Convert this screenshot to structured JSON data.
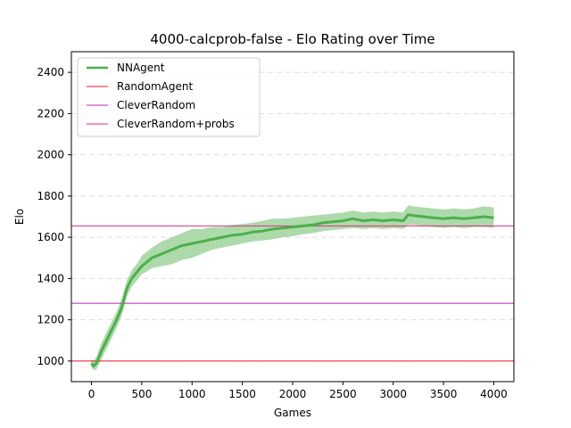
{
  "chart_data": {
    "type": "line",
    "title": "4000-calcprob-false - Elo Rating over Time",
    "xlabel": "Games",
    "ylabel": "Elo",
    "xlim": [
      -200,
      4200
    ],
    "ylim": [
      900,
      2500
    ],
    "xticks": [
      0,
      500,
      1000,
      1500,
      2000,
      2500,
      3000,
      3500,
      4000
    ],
    "yticks": [
      1000,
      1200,
      1400,
      1600,
      1800,
      2000,
      2200,
      2400
    ],
    "grid": "y-dashed",
    "legend_position": "top-left",
    "series": [
      {
        "name": "NNAgent",
        "color": "#4daf4a",
        "band_color": "#9fd49c",
        "x": [
          0,
          20,
          50,
          100,
          150,
          200,
          250,
          300,
          350,
          400,
          450,
          500,
          600,
          700,
          800,
          900,
          1000,
          1100,
          1200,
          1300,
          1400,
          1500,
          1600,
          1700,
          1800,
          1900,
          2000,
          2100,
          2200,
          2300,
          2400,
          2500,
          2600,
          2700,
          2800,
          2900,
          3000,
          3100,
          3150,
          3200,
          3300,
          3400,
          3500,
          3600,
          3700,
          3800,
          3900,
          4000
        ],
        "y": [
          990,
          975,
          990,
          1050,
          1100,
          1150,
          1200,
          1260,
          1350,
          1400,
          1430,
          1460,
          1500,
          1520,
          1540,
          1560,
          1570,
          1580,
          1590,
          1600,
          1610,
          1615,
          1625,
          1630,
          1640,
          1645,
          1650,
          1655,
          1660,
          1670,
          1675,
          1680,
          1690,
          1680,
          1685,
          1680,
          1685,
          1680,
          1710,
          1705,
          1700,
          1695,
          1690,
          1695,
          1690,
          1695,
          1700,
          1695
        ],
        "band_lower": [
          970,
          955,
          960,
          1010,
          1060,
          1110,
          1160,
          1220,
          1310,
          1360,
          1390,
          1420,
          1450,
          1460,
          1470,
          1490,
          1500,
          1520,
          1540,
          1550,
          1560,
          1570,
          1580,
          1585,
          1590,
          1600,
          1605,
          1615,
          1620,
          1630,
          1635,
          1640,
          1645,
          1640,
          1645,
          1640,
          1645,
          1640,
          1660,
          1660,
          1655,
          1650,
          1645,
          1650,
          1645,
          1650,
          1650,
          1645
        ],
        "band_upper": [
          1010,
          1000,
          1020,
          1090,
          1140,
          1190,
          1240,
          1300,
          1390,
          1440,
          1470,
          1510,
          1550,
          1580,
          1600,
          1620,
          1640,
          1640,
          1650,
          1650,
          1660,
          1665,
          1670,
          1680,
          1690,
          1690,
          1695,
          1700,
          1705,
          1710,
          1715,
          1720,
          1730,
          1720,
          1725,
          1720,
          1725,
          1720,
          1755,
          1750,
          1745,
          1740,
          1735,
          1740,
          1735,
          1740,
          1750,
          1745
        ]
      },
      {
        "name": "RandomAgent",
        "color": "#e41a1c",
        "y": 1000
      },
      {
        "name": "CleverRandom",
        "color": "#c01fc0",
        "y": 1280
      },
      {
        "name": "CleverRandom+probs",
        "color": "#e7298a",
        "y": 1655
      }
    ]
  }
}
